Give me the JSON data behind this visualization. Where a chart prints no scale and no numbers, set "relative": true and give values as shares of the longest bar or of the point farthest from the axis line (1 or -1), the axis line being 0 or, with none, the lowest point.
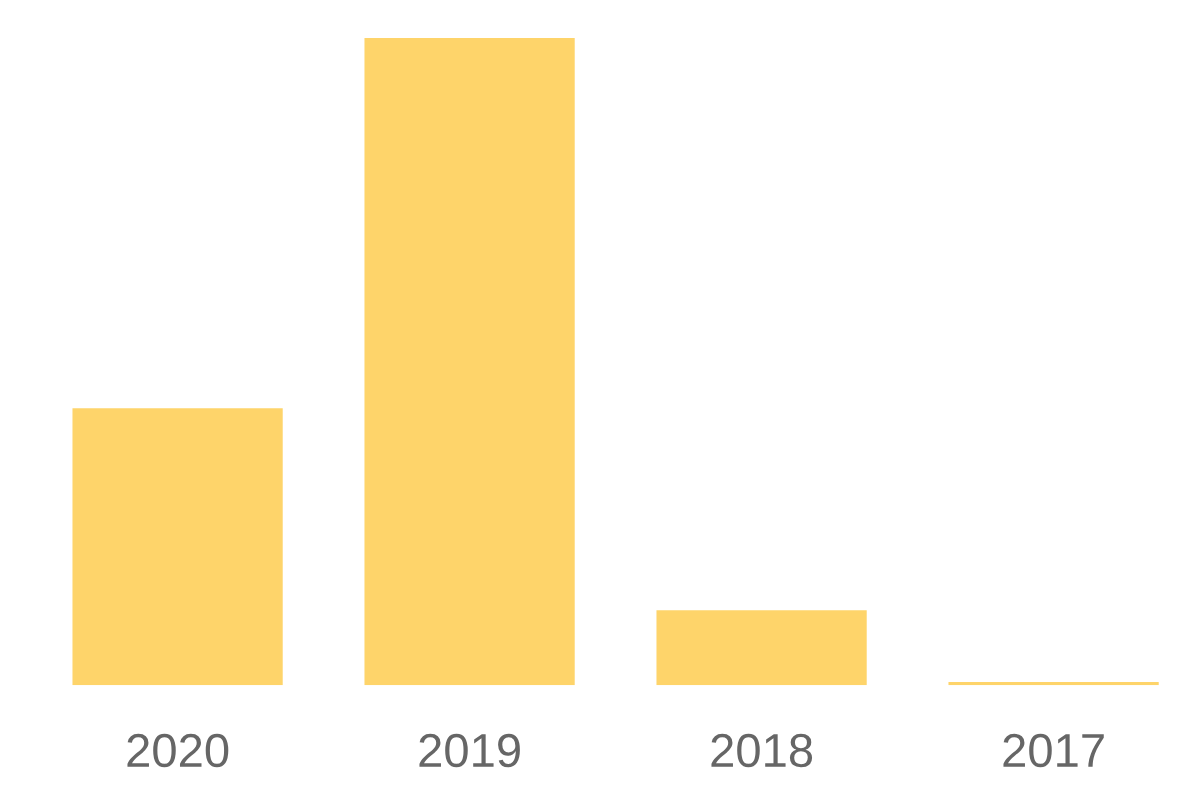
{
  "chart_data": {
    "type": "bar",
    "relative": true,
    "categories": [
      "2020",
      "2019",
      "2018",
      "2017"
    ],
    "values": [
      0.428,
      1,
      0.116,
      0.005
    ],
    "color": "#fed46a"
  }
}
